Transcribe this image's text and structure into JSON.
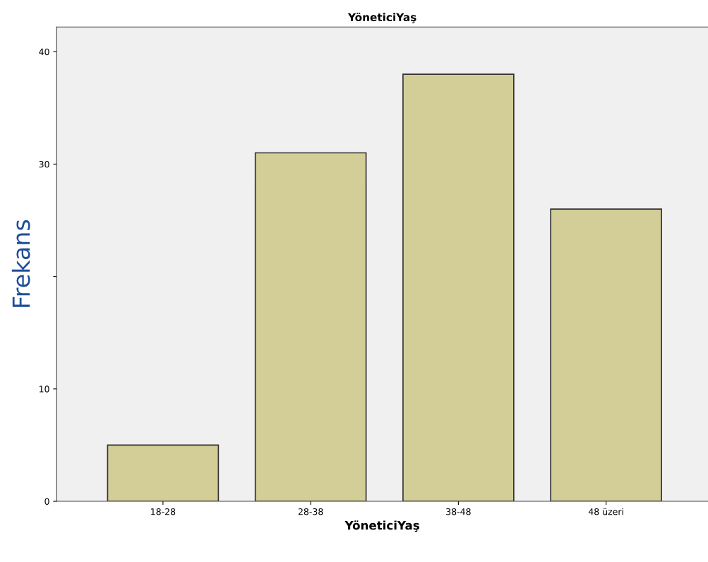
{
  "chart_data": {
    "type": "bar",
    "title": "YöneticiYaş",
    "xlabel": "YöneticiYaş",
    "ylabel": "Frekans",
    "categories": [
      "18-28",
      "28-38",
      "38-48",
      "48 üzeri"
    ],
    "values": [
      5,
      31,
      38,
      26
    ],
    "color": "#d3ce97",
    "ylim": [
      0,
      42.2
    ],
    "yticks": [
      0,
      10,
      {
        "value": 20,
        "label": null
      },
      30,
      40
    ],
    "grid": false,
    "legend": false
  }
}
